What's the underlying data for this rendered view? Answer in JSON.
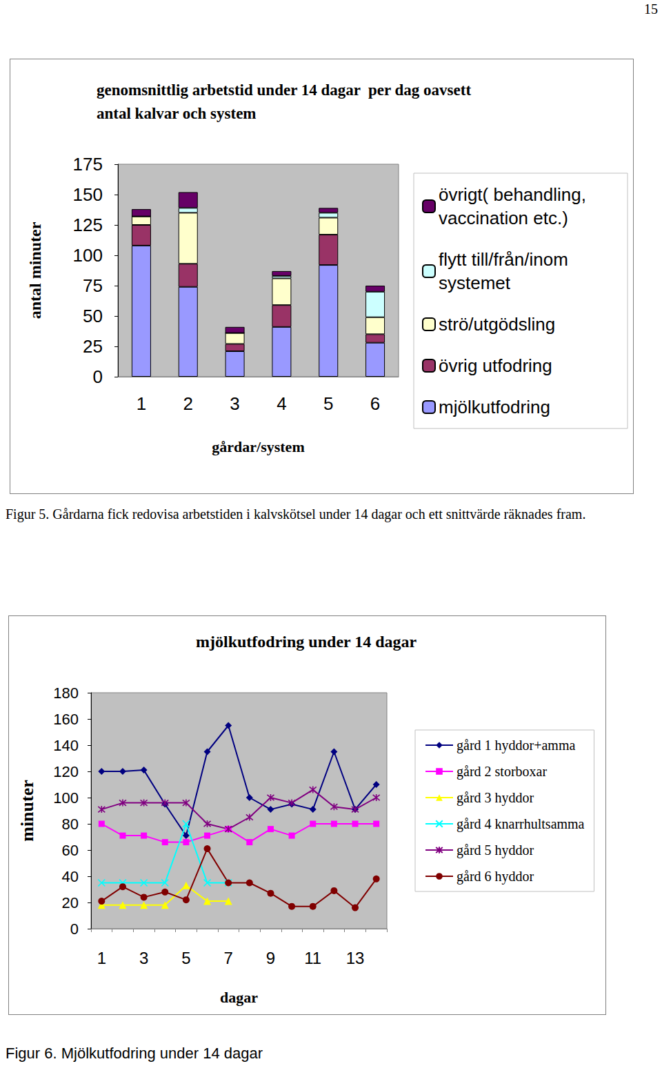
{
  "page_number": 15,
  "chart_data": [
    {
      "type": "bar",
      "title": "genomsnittlig arbetstid under 14 dagar  per dag oavsett\nantal kalvar och system",
      "x_label": "gårdar/system",
      "y_label": "antal minuter",
      "caption": "Figur 5. Gårdarna fick redovisa arbetstiden i kalvskötsel under 14 dagar och ett snittvärde räknades fram.",
      "categories": [
        "1",
        "2",
        "3",
        "4",
        "5",
        "6"
      ],
      "stacked": true,
      "grid": false,
      "legend": "right",
      "ylim": [
        0,
        175
      ],
      "yticks": [
        0,
        25,
        50,
        75,
        100,
        125,
        150,
        175
      ],
      "series": [
        {
          "name": "mjölkutfodring",
          "color": "#9999ff",
          "values": [
            108,
            74,
            21,
            41,
            92,
            28
          ]
        },
        {
          "name": "övrig utfodring",
          "color": "#993366",
          "values": [
            17,
            19,
            6,
            18,
            25,
            7
          ]
        },
        {
          "name": "strö/utgödsling",
          "color": "#ffffcc",
          "values": [
            7,
            42,
            9,
            22,
            14,
            14
          ]
        },
        {
          "name": "flytt till/från/inom systemet",
          "color": "#ccffff",
          "values": [
            0,
            4,
            0,
            2,
            4,
            21
          ]
        },
        {
          "name": "övrigt( behandling, vaccination etc.)",
          "color": "#660066",
          "values": [
            6,
            13,
            5,
            4,
            4,
            5
          ]
        }
      ]
    },
    {
      "type": "line",
      "title": "mjölkutfodring under 14 dagar",
      "x_label": "dagar",
      "y_label": "minuter",
      "caption": "Figur 6. Mjölkutfodring under 14 dagar",
      "categories": [
        "1",
        null,
        "3",
        null,
        "5",
        null,
        "7",
        null,
        "9",
        null,
        "11",
        null,
        "13",
        null
      ],
      "grid": false,
      "legend": "right",
      "ylim": [
        0,
        180
      ],
      "yticks": [
        0,
        20,
        40,
        60,
        80,
        100,
        120,
        140,
        160,
        180
      ],
      "series": [
        {
          "name": "gård 1 hyddor+amma",
          "color": "#000080",
          "marker": "diamond",
          "values": [
            120,
            120,
            121,
            95,
            71,
            135,
            155,
            100,
            91,
            95,
            91,
            135,
            91,
            110
          ]
        },
        {
          "name": "gård 2 storboxar",
          "color": "#ff00ff",
          "marker": "square",
          "values": [
            80,
            71,
            71,
            66,
            66,
            71,
            76,
            66,
            76,
            71,
            80,
            80,
            80,
            80
          ]
        },
        {
          "name": "gård 3 hyddor",
          "color": "#ffff00",
          "marker": "triangle",
          "values": [
            18,
            18,
            18,
            18,
            33,
            21,
            21,
            null,
            null,
            null,
            null,
            null,
            null,
            null
          ]
        },
        {
          "name": "gård 4 knarrhultsamma",
          "color": "#00ffff",
          "marker": "x",
          "values": [
            35,
            35,
            35,
            35,
            80,
            35,
            35,
            null,
            null,
            null,
            null,
            null,
            null,
            null
          ]
        },
        {
          "name": "gård 5 hyddor",
          "color": "#800080",
          "marker": "star",
          "values": [
            91,
            96,
            96,
            96,
            96,
            80,
            76,
            85,
            100,
            96,
            106,
            93,
            91,
            100
          ]
        },
        {
          "name": "gård 6 hyddor",
          "color": "#800000",
          "marker": "circle",
          "values": [
            21,
            32,
            24,
            28,
            22,
            61,
            35,
            35,
            27,
            17,
            17,
            29,
            16,
            38
          ]
        }
      ]
    }
  ]
}
